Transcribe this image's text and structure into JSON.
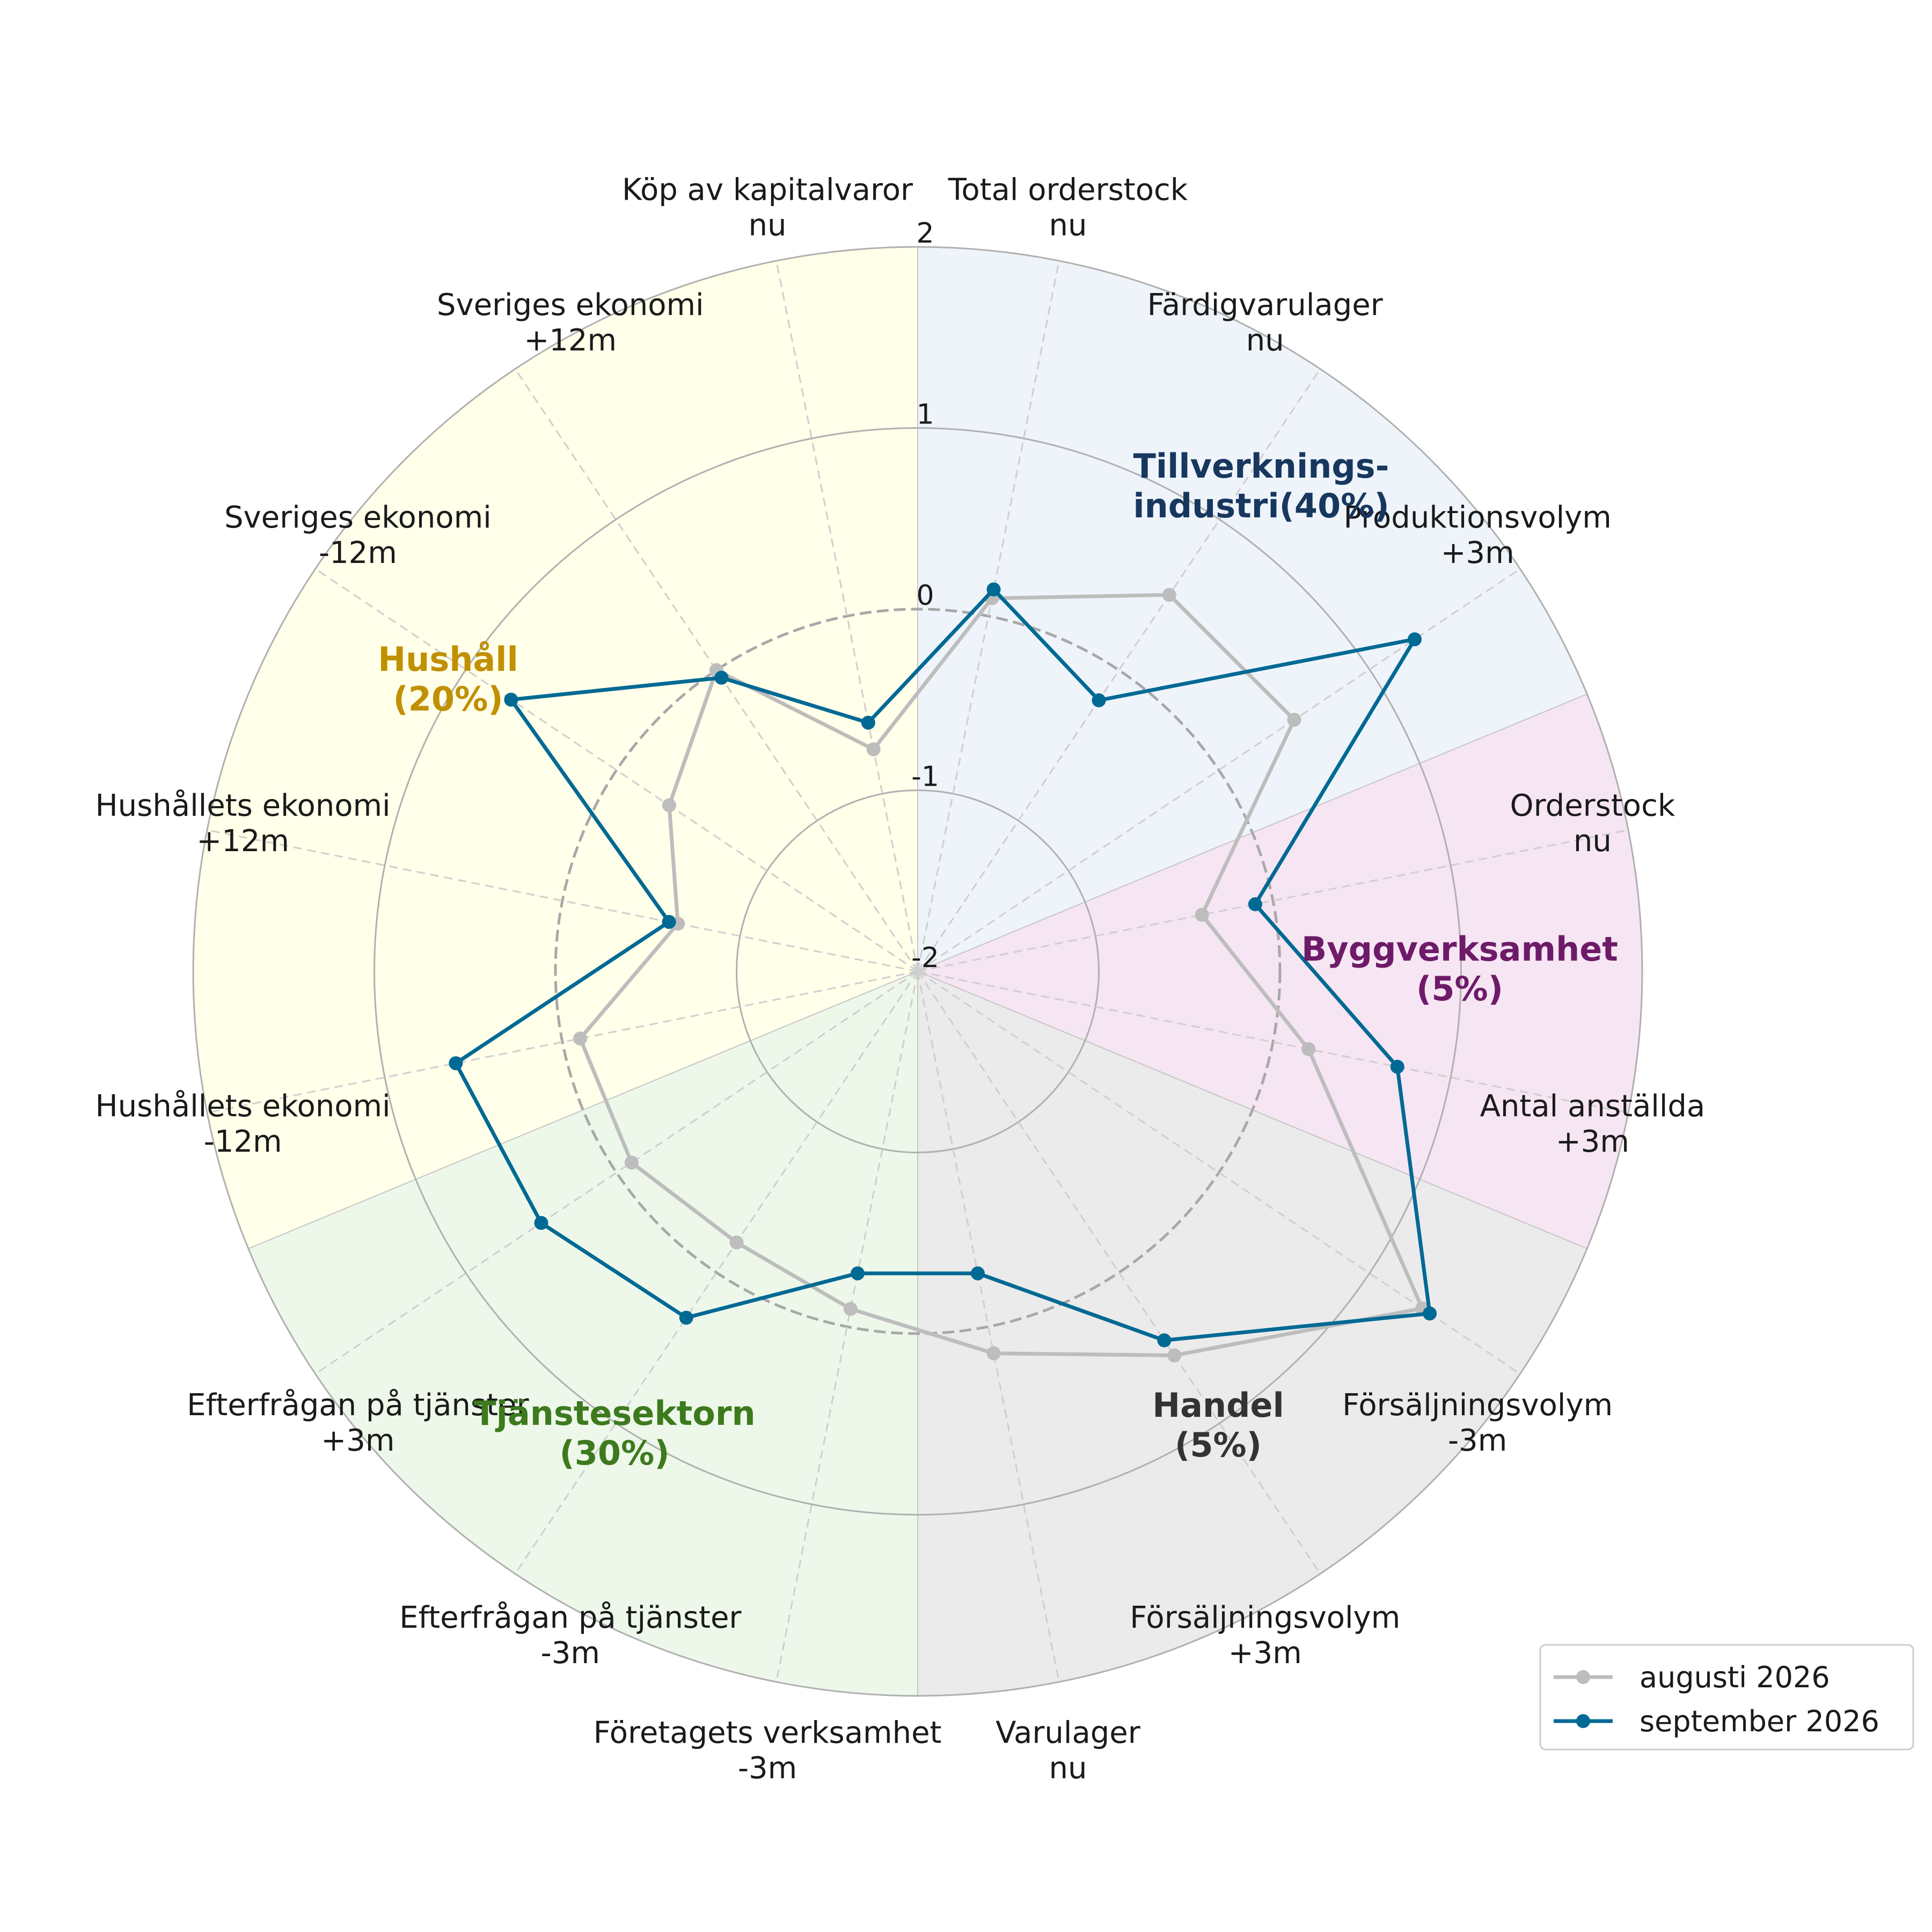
{
  "chart_data": {
    "type": "radar",
    "rlim": [
      -2,
      2
    ],
    "ticks": [
      "2",
      "1",
      "0",
      "-1",
      "-2"
    ],
    "axes": [
      {
        "line1": "Total orderstock",
        "line2": "nu"
      },
      {
        "line1": "Färdigvarulager",
        "line2": "nu"
      },
      {
        "line1": "Produktionsvolym",
        "line2": "+3m"
      },
      {
        "line1": "Orderstock",
        "line2": "nu"
      },
      {
        "line1": "Antal anställda",
        "line2": "+3m"
      },
      {
        "line1": "Försäljningsvolym",
        "line2": "-3m"
      },
      {
        "line1": "Försäljningsvolym",
        "line2": "+3m"
      },
      {
        "line1": "Varulager",
        "line2": "nu"
      },
      {
        "line1": "Företagets verksamhet",
        "line2": "-3m"
      },
      {
        "line1": "Efterfrågan på tjänster",
        "line2": "-3m"
      },
      {
        "line1": "Efterfrågan på tjänster",
        "line2": "+3m"
      },
      {
        "line1": "Hushållets ekonomi",
        "line2": "-12m"
      },
      {
        "line1": "Hushållets ekonomi",
        "line2": "+12m"
      },
      {
        "line1": "Sveriges ekonomi",
        "line2": "-12m"
      },
      {
        "line1": "Sveriges ekonomi",
        "line2": "+12m"
      },
      {
        "line1": "Köp av kapitalvaror",
        "line2": "nu"
      }
    ],
    "sectors": [
      {
        "line1": "Tillverknings-",
        "line2": "industri(40%)",
        "color": "#17375e",
        "fill": "#eef4fa",
        "axes": [
          0,
          2
        ]
      },
      {
        "line1": "Byggverksamhet",
        "line2": "(5%)",
        "color": "#6d1b68",
        "fill": "#f6e5f3",
        "axes": [
          3,
          4
        ]
      },
      {
        "line1": "Handel",
        "line2": "(5%)",
        "color": "#333333",
        "fill": "#ebebeb",
        "axes": [
          5,
          7
        ]
      },
      {
        "line1": "Tjänstesektorn",
        "line2": "(30%)",
        "color": "#3d7a1e",
        "fill": "#eef8ea",
        "axes": [
          8,
          10
        ]
      },
      {
        "line1": "Hushåll",
        "line2": "(20%)",
        "color": "#c09000",
        "fill": "#ffffea",
        "axes": [
          11,
          15
        ]
      }
    ],
    "series": [
      {
        "name": "augusti 2026",
        "color": "#bdbdbd",
        "values": [
          0.1,
          0.5,
          0.5,
          -0.4,
          0.2,
          1.35,
          0.55,
          0.15,
          -0.1,
          -0.2,
          -0.1,
          -0.1,
          -0.65,
          -0.35,
          0.0,
          -0.75
        ]
      },
      {
        "name": "september 2026",
        "color": "#006994",
        "values": [
          0.15,
          -0.2,
          1.3,
          -0.1,
          0.7,
          1.4,
          0.45,
          -0.3,
          -0.3,
          0.3,
          0.5,
          0.6,
          -0.6,
          0.7,
          -0.05,
          -0.6
        ]
      }
    ],
    "legend": "bottom-right",
    "grid": true
  }
}
